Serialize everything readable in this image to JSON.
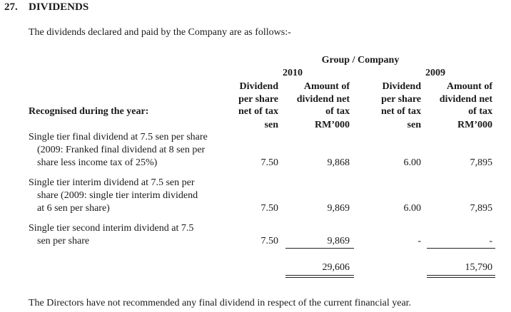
{
  "section": {
    "number": "27.",
    "title": "DIVIDENDS"
  },
  "intro": "The dividends declared and paid by the Company are as follows:-",
  "table": {
    "group_header": "Group / Company",
    "years": [
      "2010",
      "2009"
    ],
    "columns": {
      "dps": [
        "Dividend",
        "per share",
        "net of tax"
      ],
      "amount": [
        "Amount of",
        "dividend net",
        "of tax"
      ]
    },
    "units": {
      "dps": "sen",
      "amount": "RM’000"
    },
    "row_heading": "Recognised during the year:",
    "rows": [
      {
        "lines": [
          "Single tier final dividend at 7.5 sen per share",
          "(2009: Franked final dividend at 8 sen per",
          "share less income tax of 25%)"
        ],
        "dps_2010": "7.50",
        "amount_2010": "9,868",
        "dps_2009": "6.00",
        "amount_2009": "7,895"
      },
      {
        "lines": [
          "Single tier interim dividend at 7.5 sen per",
          "share (2009: single tier interim dividend",
          "at 6 sen per share)"
        ],
        "dps_2010": "7.50",
        "amount_2010": "9,869",
        "dps_2009": "6.00",
        "amount_2009": "7,895"
      },
      {
        "lines": [
          "Single tier second interim dividend at 7.5",
          "sen per share"
        ],
        "dps_2010": "7.50",
        "amount_2010": "9,869",
        "dps_2009": "-",
        "amount_2009": "-"
      }
    ],
    "totals": {
      "amount_2010": "29,606",
      "amount_2009": "15,790"
    }
  },
  "footer": "The Directors have not recommended any final dividend in respect of the current financial year."
}
